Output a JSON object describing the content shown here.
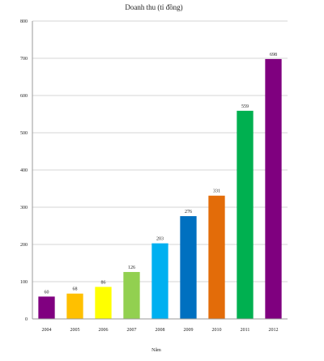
{
  "chart_data": {
    "type": "bar",
    "title": "Doanh thu (tỉ đồng)",
    "xlabel": "Năm",
    "ylabel": "",
    "categories": [
      "2004",
      "2005",
      "2006",
      "2007",
      "2008",
      "2009",
      "2010",
      "2011",
      "2012"
    ],
    "values": [
      60,
      68,
      86,
      126,
      203,
      276,
      331,
      559,
      698
    ],
    "data_labels": [
      "60",
      "68",
      "86",
      "126",
      "203",
      "276",
      "331",
      "559",
      "698"
    ],
    "colors": [
      "#800080",
      "#FFC000",
      "#FFFF00",
      "#92D050",
      "#00B0F0",
      "#0070C0",
      "#E36C09",
      "#00B050",
      "#7F007F"
    ],
    "ylim": [
      0,
      800
    ],
    "yticks": [
      "0",
      "100",
      "200",
      "300",
      "400",
      "500",
      "600",
      "700",
      "800"
    ],
    "grid": true,
    "legend": "none"
  }
}
